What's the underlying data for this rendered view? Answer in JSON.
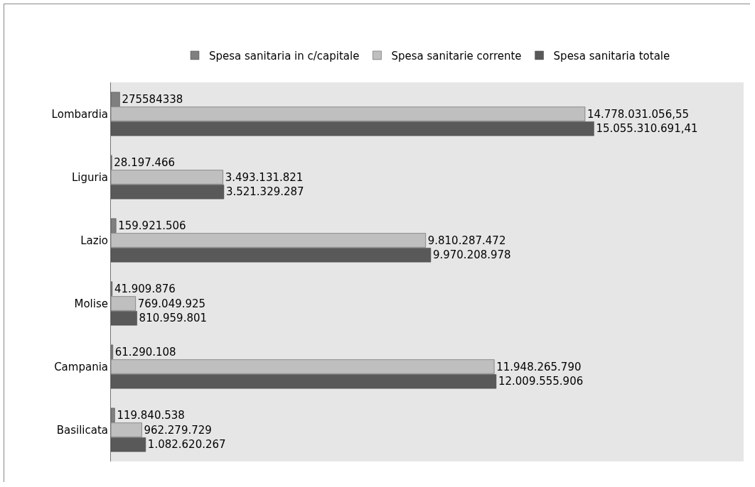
{
  "chart_data": {
    "type": "bar",
    "orientation": "horizontal",
    "categories": [
      "Lombardia",
      "Liguria",
      "Lazio",
      "Molise",
      "Campania",
      "Basilicata"
    ],
    "series": [
      {
        "name": "Spesa sanitaria in c/capitale",
        "color": "#7f7f7f",
        "values": [
          275584338,
          28197466,
          159921506,
          41909876,
          61290108,
          119840538
        ],
        "value_labels": [
          "275584338",
          "28.197.466",
          "159.921.506",
          "41.909.876",
          "61.290.108",
          "119.840.538"
        ]
      },
      {
        "name": "Spesa sanitarie corrente",
        "color": "#bfbfbf",
        "values": [
          14778031056.55,
          3493131821,
          9810287472,
          769049925,
          11948265790,
          962279729
        ],
        "value_labels": [
          "14.778.031.056,55",
          "3.493.131.821",
          "9.810.287.472",
          "769.049.925",
          "11.948.265.790",
          "962.279.729"
        ]
      },
      {
        "name": "Spesa sanitaria totale",
        "color": "#595959",
        "values": [
          15055310691.41,
          3521329287,
          9970208978,
          810959801,
          12009555906,
          1082620267
        ],
        "value_labels": [
          "15.055.310.691,41",
          "3.521.329.287",
          "9.970.208.978",
          "810.959.801",
          "12.009.555.906",
          "1.082.620.267"
        ]
      }
    ],
    "legend": "top",
    "grid": false,
    "tick_labels": "y"
  }
}
